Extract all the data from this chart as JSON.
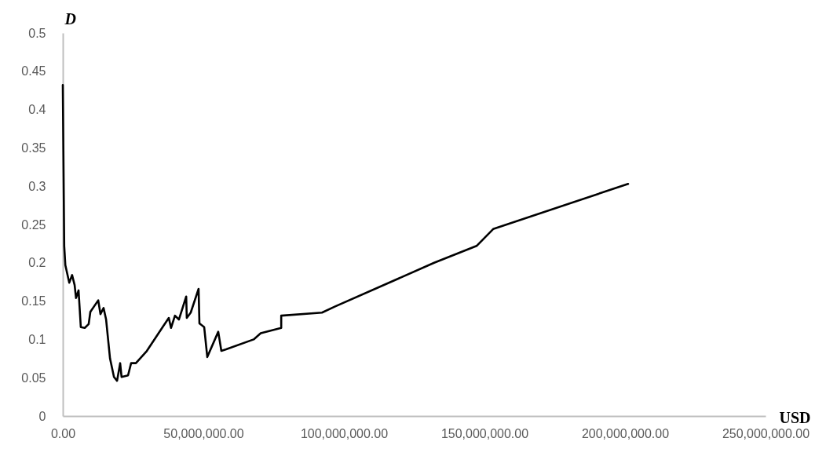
{
  "chart_data": {
    "type": "line",
    "xlabel": "USD",
    "ylabel": "D",
    "x": [
      0,
      500000.0,
      900000.0,
      2300000.0,
      3300000.0,
      4200000.0,
      4700000.0,
      5600000.0,
      6400000.0,
      7800000.0,
      9200000.0,
      9800000.0,
      12600000.0,
      13400000.0,
      14500000.0,
      15400000.0,
      16800000.0,
      18200000.0,
      19300000.0,
      20400000.0,
      20900000.0,
      23200000.0,
      24300000.0,
      26000000.0,
      29900000.0,
      35500000.0,
      37700000.0,
      38500000.0,
      39900000.0,
      41300000.0,
      43900000.0,
      44100000.0,
      45500000.0,
      48300000.0,
      48600000.0,
      50300000.0,
      51400000.0,
      55300000.0,
      56400000.0,
      58100000.0,
      67900000.0,
      70400000.0,
      77700000.0,
      77700000.0,
      92200000.0,
      96900000.0,
      132100000.0,
      147200000.0,
      153100000.0,
      201100000.0
    ],
    "series": [
      {
        "color": "#000000",
        "values": [
          0.432,
          0.222,
          0.197,
          0.174,
          0.184,
          0.171,
          0.154,
          0.164,
          0.116,
          0.115,
          0.12,
          0.136,
          0.151,
          0.133,
          0.141,
          0.126,
          0.075,
          0.051,
          0.046,
          0.069,
          0.051,
          0.053,
          0.069,
          0.069,
          0.085,
          0.116,
          0.128,
          0.115,
          0.131,
          0.126,
          0.156,
          0.128,
          0.135,
          0.166,
          0.121,
          0.116,
          0.077,
          0.11,
          0.085,
          0.087,
          0.1,
          0.108,
          0.115,
          0.131,
          0.135,
          0.143,
          0.2,
          0.222,
          0.244,
          0.303
        ]
      }
    ],
    "xlim": [
      0,
      250000000
    ],
    "xticks": [
      {
        "value": 0,
        "label": "0.00"
      },
      {
        "value": 50000000,
        "label": "50,000,000.00"
      },
      {
        "value": 100000000,
        "label": "100,000,000.00"
      },
      {
        "value": 150000000,
        "label": "150,000,000.00"
      },
      {
        "value": 200000000,
        "label": "200,000,000.00"
      },
      {
        "value": 250000000,
        "label": "250,000,000.00"
      }
    ],
    "ylim": [
      0,
      0.5
    ],
    "yticks": [
      0,
      0.05,
      0.1,
      0.15,
      0.2,
      0.25,
      0.3,
      0.35,
      0.4,
      0.45,
      0.5
    ],
    "grid": false,
    "marker": "none",
    "line_style": "solid"
  }
}
